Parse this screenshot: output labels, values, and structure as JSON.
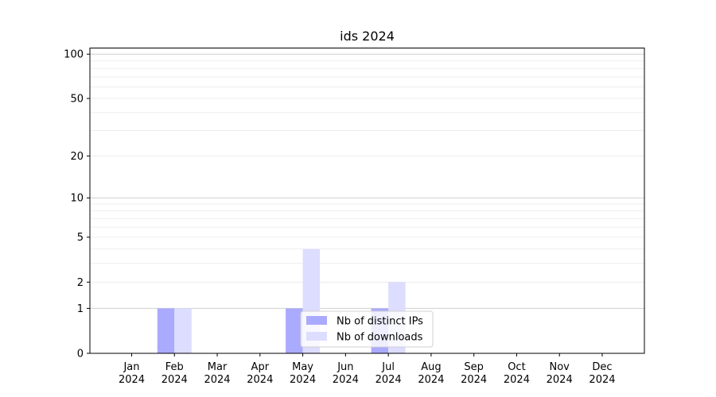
{
  "chart_data": {
    "type": "bar",
    "title": "ids 2024",
    "xlabel": "",
    "ylabel": "",
    "yscale": "symlog",
    "ylim": [
      0,
      110
    ],
    "yticks": [
      0,
      1,
      2,
      5,
      10,
      20,
      50,
      100
    ],
    "grid": true,
    "legend_position": "bottom-center",
    "categories": [
      "Jan\n2024",
      "Feb\n2024",
      "Mar\n2024",
      "Apr\n2024",
      "May\n2024",
      "Jun\n2024",
      "Jul\n2024",
      "Aug\n2024",
      "Sep\n2024",
      "Oct\n2024",
      "Nov\n2024",
      "Dec\n2024"
    ],
    "series": [
      {
        "name": "Nb of distinct IPs",
        "color": "#aaaaff",
        "values": [
          0,
          1,
          0,
          0,
          1,
          0,
          1,
          0,
          0,
          0,
          0,
          0
        ]
      },
      {
        "name": "Nb of downloads",
        "color": "#ddddff",
        "values": [
          0,
          1,
          0,
          0,
          4,
          0,
          2,
          0,
          0,
          0,
          0,
          0
        ]
      }
    ]
  }
}
